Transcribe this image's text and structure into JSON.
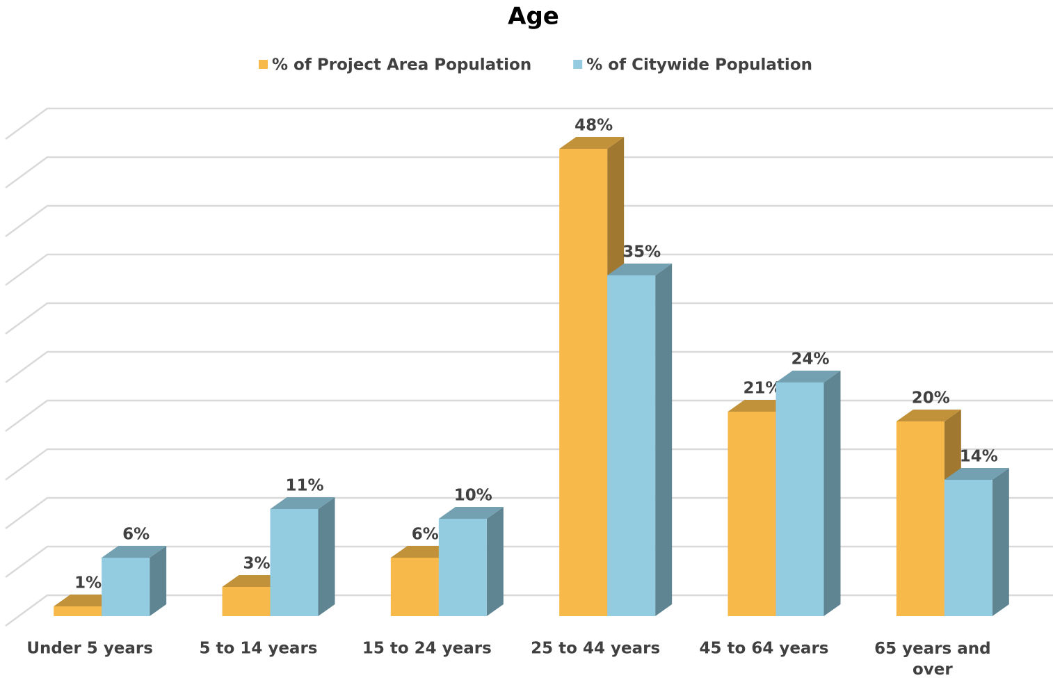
{
  "chart_data": {
    "type": "bar3d",
    "title": "Age",
    "categories": [
      "Under 5 years",
      "5 to 14 years",
      "15 to 24 years",
      "25 to 44 years",
      "45 to 64 years",
      "65 years and over"
    ],
    "series": [
      {
        "name": "% of Project Area Population",
        "color": "#f6b94a",
        "values": [
          1,
          3,
          6,
          48,
          21,
          20
        ],
        "value_labels": [
          "1%",
          "3%",
          "6%",
          "48%",
          "21%",
          "20%"
        ]
      },
      {
        "name": "% of Citywide Population",
        "color": "#93cce0",
        "values": [
          6,
          11,
          10,
          35,
          24,
          14
        ],
        "value_labels": [
          "6%",
          "11%",
          "10%",
          "35%",
          "24%",
          "14%"
        ]
      }
    ],
    "ylim": [
      0,
      50
    ],
    "yticks": [
      0,
      5,
      10,
      15,
      20,
      25,
      30,
      35,
      40,
      45,
      50
    ],
    "grid": true,
    "legend": "top"
  }
}
